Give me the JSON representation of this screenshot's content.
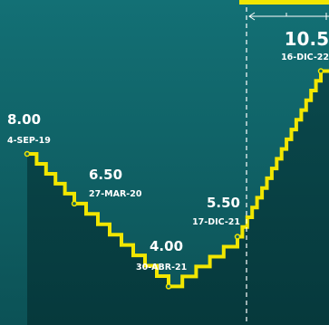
{
  "header_fragment": "",
  "chart_data": {
    "type": "line",
    "x": [
      "4-SEP-19",
      "27-MAR-20",
      "30-ABR-21",
      "17-DIC-21",
      "16-DIC-22"
    ],
    "values": [
      8.0,
      6.5,
      4.0,
      5.5,
      10.5
    ],
    "value_labels": [
      "8.00",
      "6.50",
      "4.00",
      "5.50",
      "10.5"
    ],
    "date_labels": [
      "4-SEP-19",
      "27-MAR-20",
      "30-ABR-21",
      "17-DIC-21",
      "16-DIC-22"
    ],
    "step_line": true,
    "line_color": "#f2e600",
    "fill_color": "#0b4e52",
    "background_color": "#0f5f63",
    "marker_line_color": "#ffffff"
  }
}
